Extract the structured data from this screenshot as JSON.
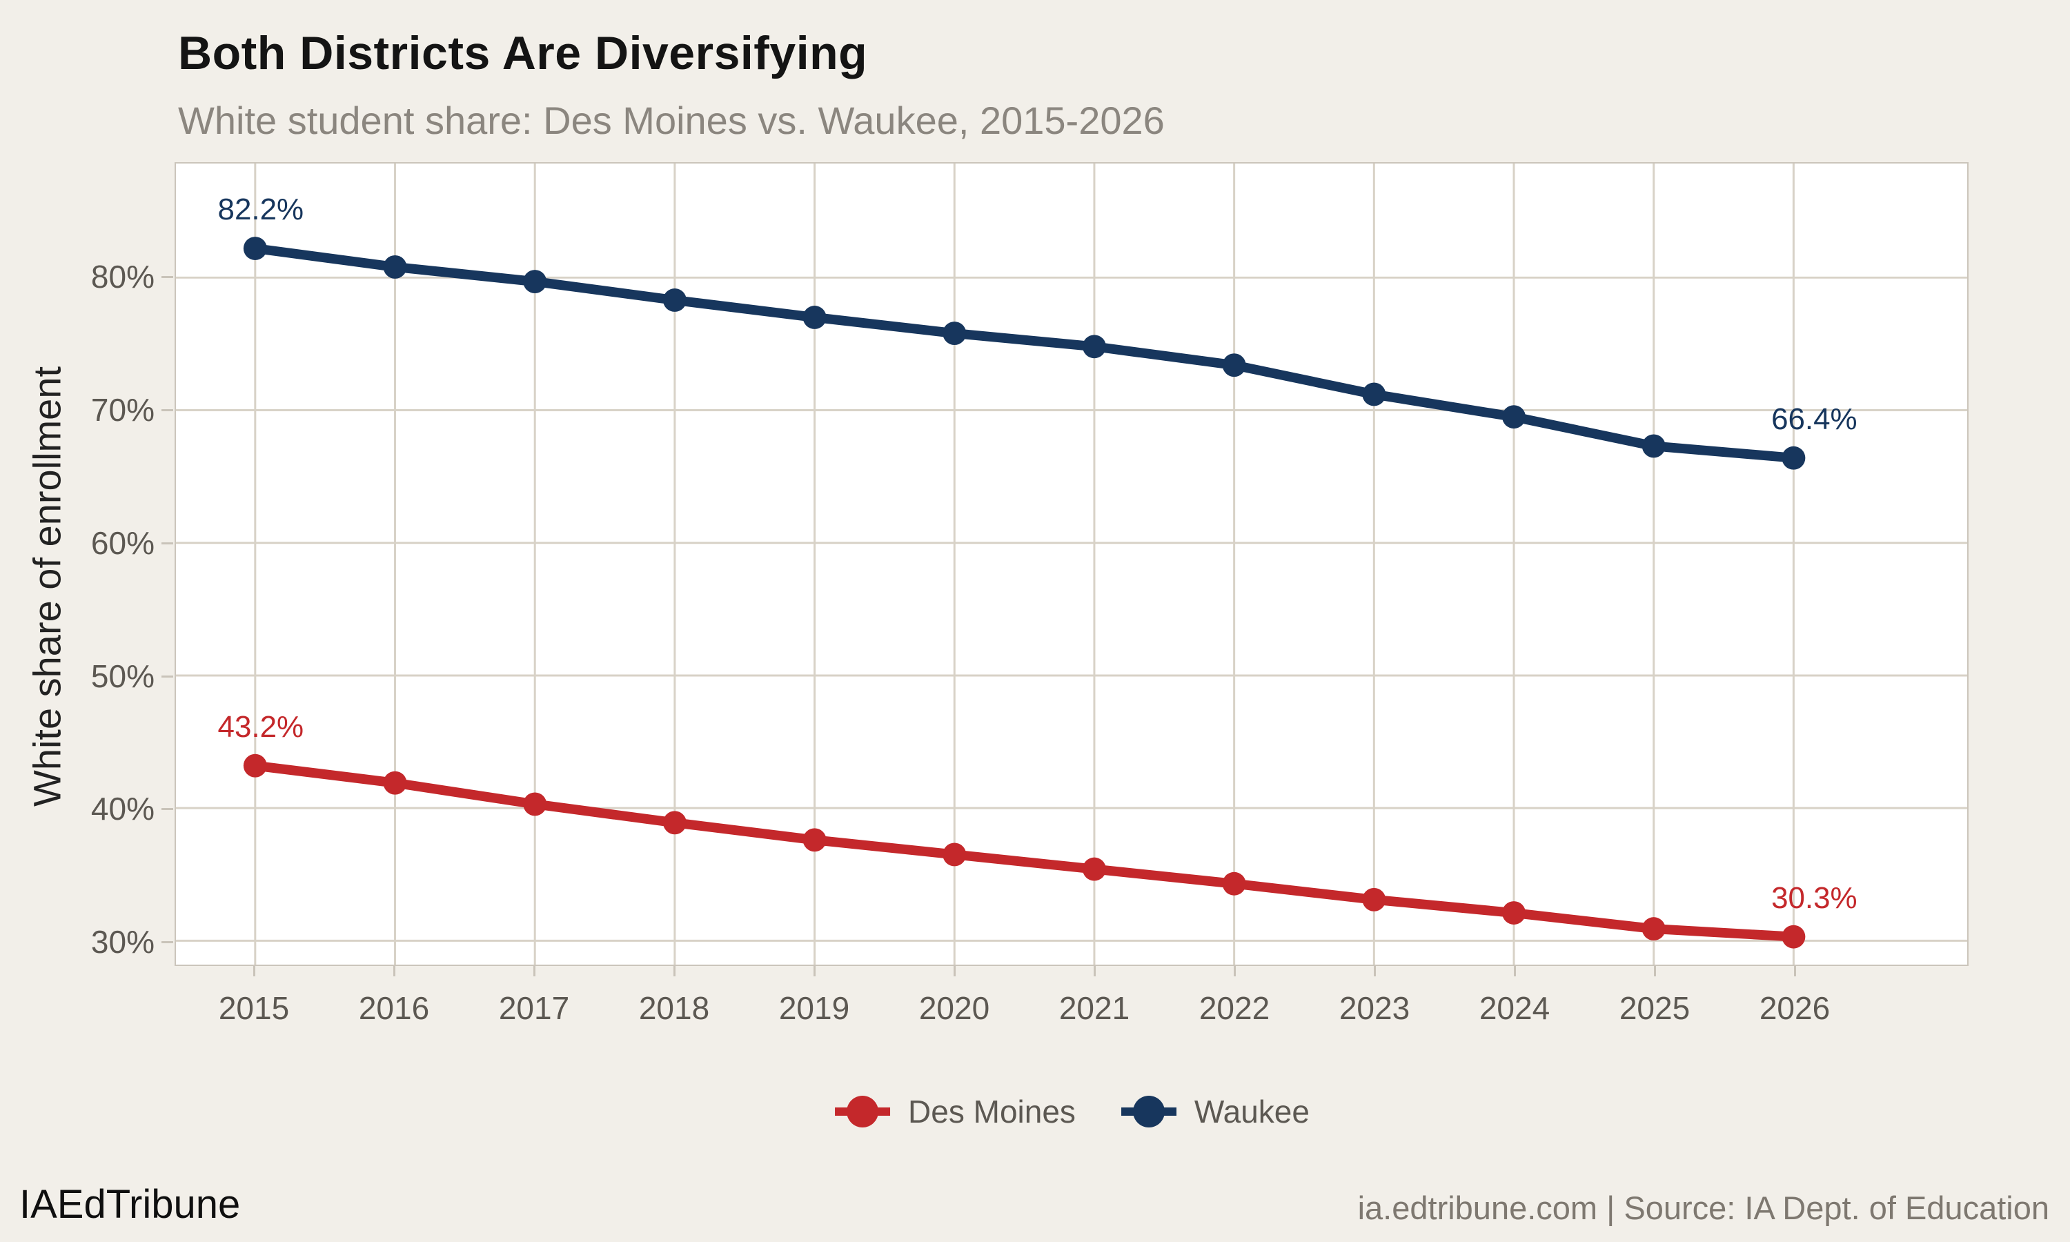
{
  "header": {
    "title": "Both Districts Are Diversifying",
    "subtitle": "White student share: Des Moines vs. Waukee, 2015-2026"
  },
  "chart_data": {
    "type": "line",
    "categories": [
      "2015",
      "2016",
      "2017",
      "2018",
      "2019",
      "2020",
      "2021",
      "2022",
      "2023",
      "2024",
      "2025",
      "2026"
    ],
    "series": [
      {
        "name": "Des Moines",
        "color": "#C4282B",
        "values": [
          43.2,
          41.9,
          40.3,
          38.9,
          37.6,
          36.5,
          35.4,
          34.3,
          33.1,
          32.1,
          30.9,
          30.3
        ],
        "point_labels": [
          {
            "index": 0,
            "text": "43.2%"
          },
          {
            "index": 11,
            "text": "30.3%"
          }
        ]
      },
      {
        "name": "Waukee",
        "color": "#17365D",
        "values": [
          82.2,
          80.8,
          79.7,
          78.3,
          77.0,
          75.8,
          74.8,
          73.4,
          71.2,
          69.5,
          67.3,
          66.4
        ],
        "point_labels": [
          {
            "index": 0,
            "text": "82.2%"
          },
          {
            "index": 11,
            "text": "66.4%"
          }
        ]
      }
    ],
    "title": "Both Districts Are Diversifying",
    "xlabel": "",
    "ylabel": "White share of enrollment",
    "ylim": [
      28.2,
      88.6
    ],
    "y_ticks": [
      {
        "value": 80,
        "label": "80%"
      },
      {
        "value": 70,
        "label": "70%"
      },
      {
        "value": 60,
        "label": "60%"
      },
      {
        "value": 50,
        "label": "50%"
      },
      {
        "value": 40,
        "label": "40%"
      },
      {
        "value": 30,
        "label": "30%"
      }
    ],
    "grid": true,
    "legend_position": "bottom"
  },
  "legend": {
    "items": [
      {
        "label": "Des Moines",
        "color": "#C4282B"
      },
      {
        "label": "Waukee",
        "color": "#17365D"
      }
    ]
  },
  "footer": {
    "brand": "IAEdTribune",
    "source": "ia.edtribune.com | Source: IA Dept. of Education"
  },
  "colors": {
    "background": "#F2EFE9",
    "panel": "#FFFFFF",
    "panel_border": "#CBC5BB",
    "gridline": "#D8D2C7",
    "tick": "#C9C3B9",
    "title_text": "#141414",
    "subtitle_text": "#8B867F",
    "axis_text": "#5C5852",
    "source_text": "#7E7870"
  }
}
